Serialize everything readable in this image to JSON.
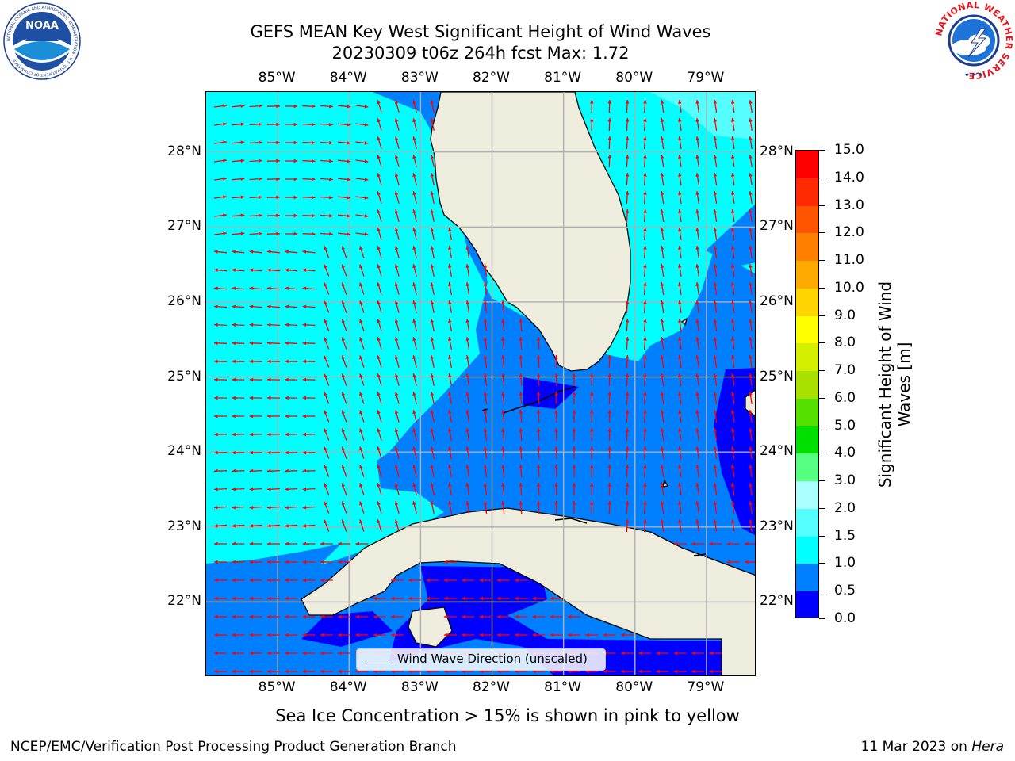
{
  "title_line1": "GEFS MEAN Key West Significant Height of Wind Waves",
  "title_line2": "20230309 t06z 264h fcst   Max: 1.72",
  "logos": {
    "left": {
      "icon": "noaa-logo",
      "text": "NOAA",
      "ring_text": "NATIONAL OCEANIC AND ATMOSPHERIC ADMINISTRATION · U.S. DEPARTMENT OF COMMERCE"
    },
    "right": {
      "icon": "nws-logo",
      "ring_text": "NATIONAL WEATHER SERVICE"
    }
  },
  "map": {
    "lon_ticks": [
      "85°W",
      "84°W",
      "83°W",
      "82°W",
      "81°W",
      "80°W",
      "79°W"
    ],
    "lat_ticks": [
      "28°N",
      "27°N",
      "26°N",
      "25°N",
      "24°N",
      "23°N",
      "22°N"
    ],
    "gridlines": true,
    "land_color": "#eeecdc",
    "arrow_color": "#ff0000",
    "extent": {
      "lon_min": -86.0,
      "lon_max": -78.3,
      "lat_min": 21.0,
      "lat_max": 28.8
    }
  },
  "legend": {
    "label": "Wind Wave Direction (unscaled)",
    "placement": "bottom-center"
  },
  "colorbar": {
    "title_line1": "Significant Height of Wind",
    "title_line2": "Waves [m]",
    "ticks": [
      "0.0",
      "0.5",
      "1.0",
      "1.5",
      "2.0",
      "3.0",
      "4.0",
      "5.0",
      "6.0",
      "7.0",
      "8.0",
      "9.0",
      "10.0",
      "11.0",
      "12.0",
      "13.0",
      "14.0",
      "15.0"
    ],
    "colors": [
      "#0000ff",
      "#0080ff",
      "#00ffff",
      "#55ffff",
      "#aaffff",
      "#55ff80",
      "#00e000",
      "#55e000",
      "#aae000",
      "#d4ef00",
      "#ffff00",
      "#ffd400",
      "#ffaa00",
      "#ff8000",
      "#ff5500",
      "#ff2a00",
      "#ff0000"
    ]
  },
  "ice_note": "Sea Ice Concentration > 15% is shown in pink to yellow",
  "footer_left": "NCEP/EMC/Verification Post Processing Product Generation Branch",
  "footer_right_date": "11 Mar 2023 on",
  "footer_right_host": "Hera"
}
